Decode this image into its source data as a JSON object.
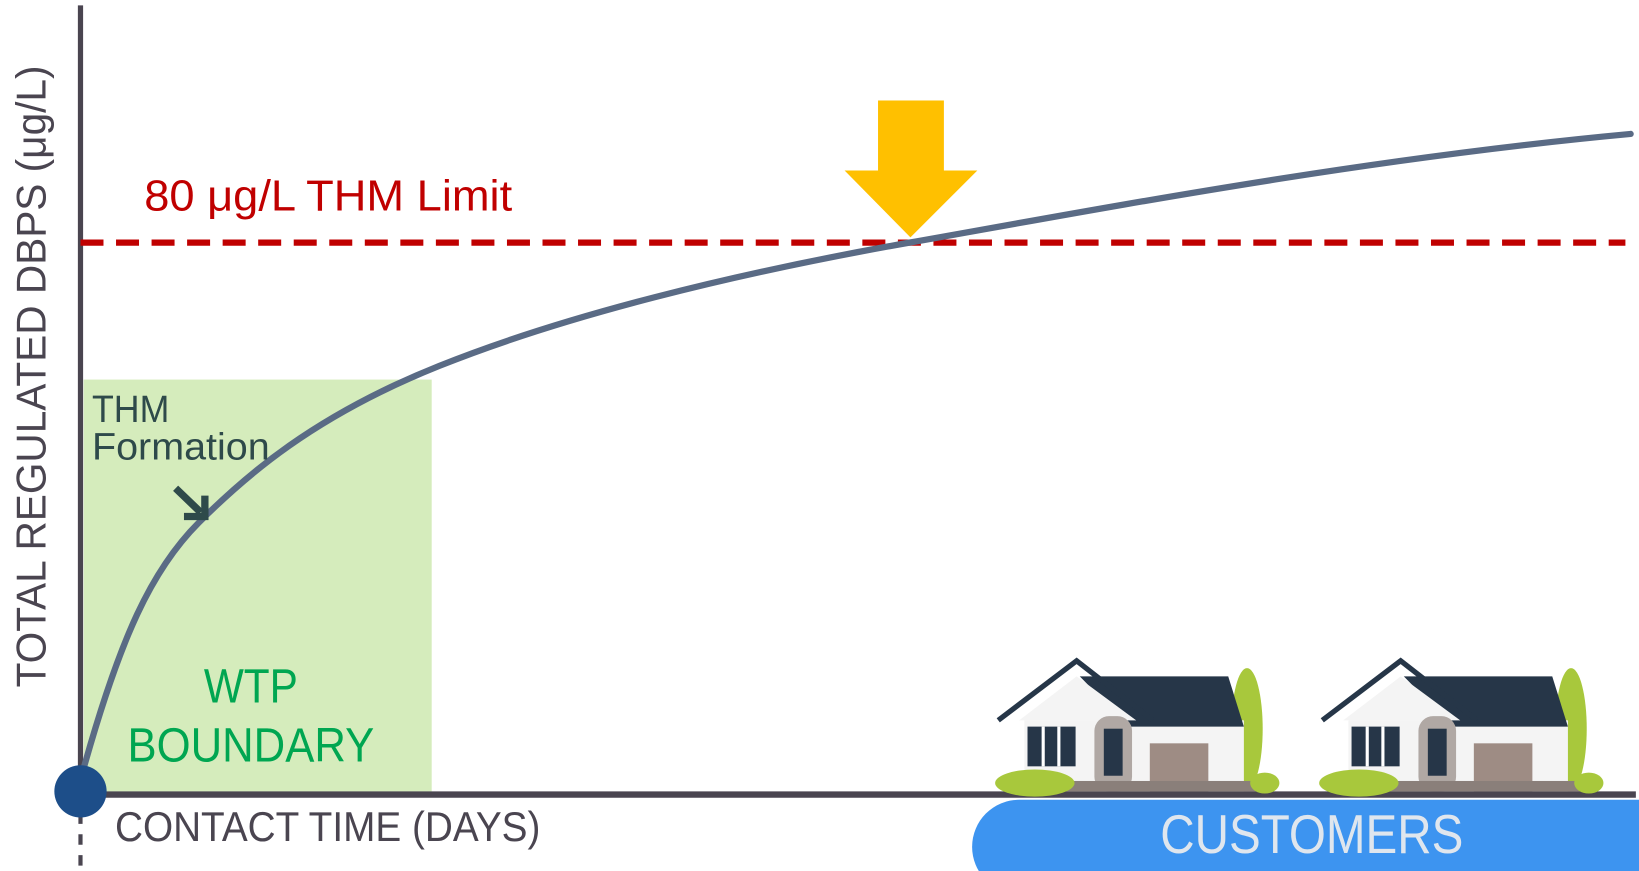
{
  "axes": {
    "y_label": "TOTAL REGULATED DBPS (μg/L)",
    "x_label": "CONTACT TIME (DAYS)"
  },
  "limit": {
    "label": "80 μg/L THM Limit"
  },
  "annotations": {
    "formation": [
      "THM",
      "Formation"
    ],
    "wtp_boundary": [
      "WTP",
      "BOUNDARY"
    ]
  },
  "customers": {
    "label": "CUSTOMERS"
  }
}
